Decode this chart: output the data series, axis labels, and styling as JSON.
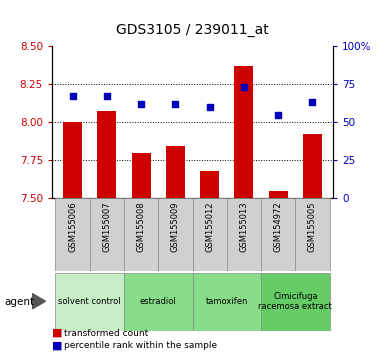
{
  "title": "GDS3105 / 239011_at",
  "samples": [
    "GSM155006",
    "GSM155007",
    "GSM155008",
    "GSM155009",
    "GSM155012",
    "GSM155013",
    "GSM154972",
    "GSM155005"
  ],
  "bar_values": [
    8.0,
    8.07,
    7.8,
    7.84,
    7.68,
    8.37,
    7.55,
    7.92
  ],
  "dot_values": [
    67,
    67,
    62,
    62,
    60,
    73,
    55,
    63
  ],
  "ylim_left": [
    7.5,
    8.5
  ],
  "ylim_right": [
    0,
    100
  ],
  "yticks_left": [
    7.5,
    7.75,
    8.0,
    8.25,
    8.5
  ],
  "yticks_right": [
    0,
    25,
    50,
    75,
    100
  ],
  "bar_color": "#CC0000",
  "dot_color": "#0000BB",
  "bar_bottom": 7.5,
  "groups": [
    {
      "label": "solvent control",
      "spans": [
        0,
        1
      ],
      "color": "#c8eec8"
    },
    {
      "label": "estradiol",
      "spans": [
        2,
        3
      ],
      "color": "#88dd88"
    },
    {
      "label": "tamoxifen",
      "spans": [
        4,
        5
      ],
      "color": "#88dd88"
    },
    {
      "label": "Cimicifuga\nracemosa extract",
      "spans": [
        6,
        7
      ],
      "color": "#66cc66"
    }
  ],
  "tick_color_left": "#CC0000",
  "tick_color_right": "#0000BB",
  "title_fontsize": 10,
  "legend_bar_label": "transformed count",
  "legend_dot_label": "percentile rank within the sample"
}
